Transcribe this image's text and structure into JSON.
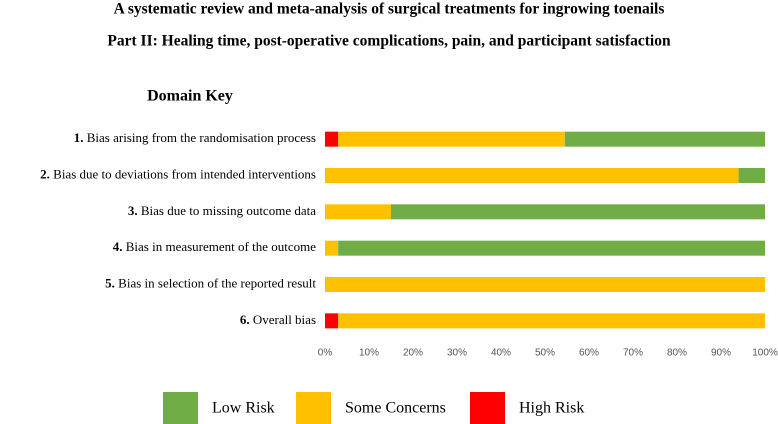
{
  "chart_data": {
    "type": "stacked_barh",
    "title": "A systematic review and meta-analysis of surgical treatments for ingrowing toenails",
    "subtitle": "Part II: Healing time, post-operative complications, pain, and participant satisfaction",
    "legend_title": "Domain Key",
    "categories": [
      "1. Bias arising from the randomisation process",
      "2. Bias due to deviations from intended interventions",
      "3. Bias due to missing outcome data",
      "4. Bias in measurement of the outcome",
      "5. Bias in selection of the reported result",
      "6. Overall bias"
    ],
    "series": [
      {
        "name": "Low Risk",
        "color": "#70ad47",
        "values": [
          45.5,
          6,
          85,
          97,
          0,
          0
        ]
      },
      {
        "name": "Some Concerns",
        "color": "#ffc000",
        "values": [
          51.5,
          94,
          15,
          3,
          100,
          97
        ]
      },
      {
        "name": "High Risk",
        "color": "#ff0000",
        "values": [
          3,
          0,
          0,
          0,
          0,
          3
        ]
      }
    ],
    "xlim": [
      0,
      100
    ],
    "xticks": [
      {
        "value": 0,
        "label": "0%"
      },
      {
        "value": 10,
        "label": "10%"
      },
      {
        "value": 20,
        "label": "20%"
      },
      {
        "value": 30,
        "label": "30%"
      },
      {
        "value": 40,
        "label": "40%"
      },
      {
        "value": 50,
        "label": "50%"
      },
      {
        "value": 60,
        "label": "60%"
      },
      {
        "value": 70,
        "label": "70%"
      },
      {
        "value": 80,
        "label": "80%"
      },
      {
        "value": 90,
        "label": "90%"
      },
      {
        "value": 100,
        "label": "100%"
      }
    ],
    "legend": "bottom"
  }
}
